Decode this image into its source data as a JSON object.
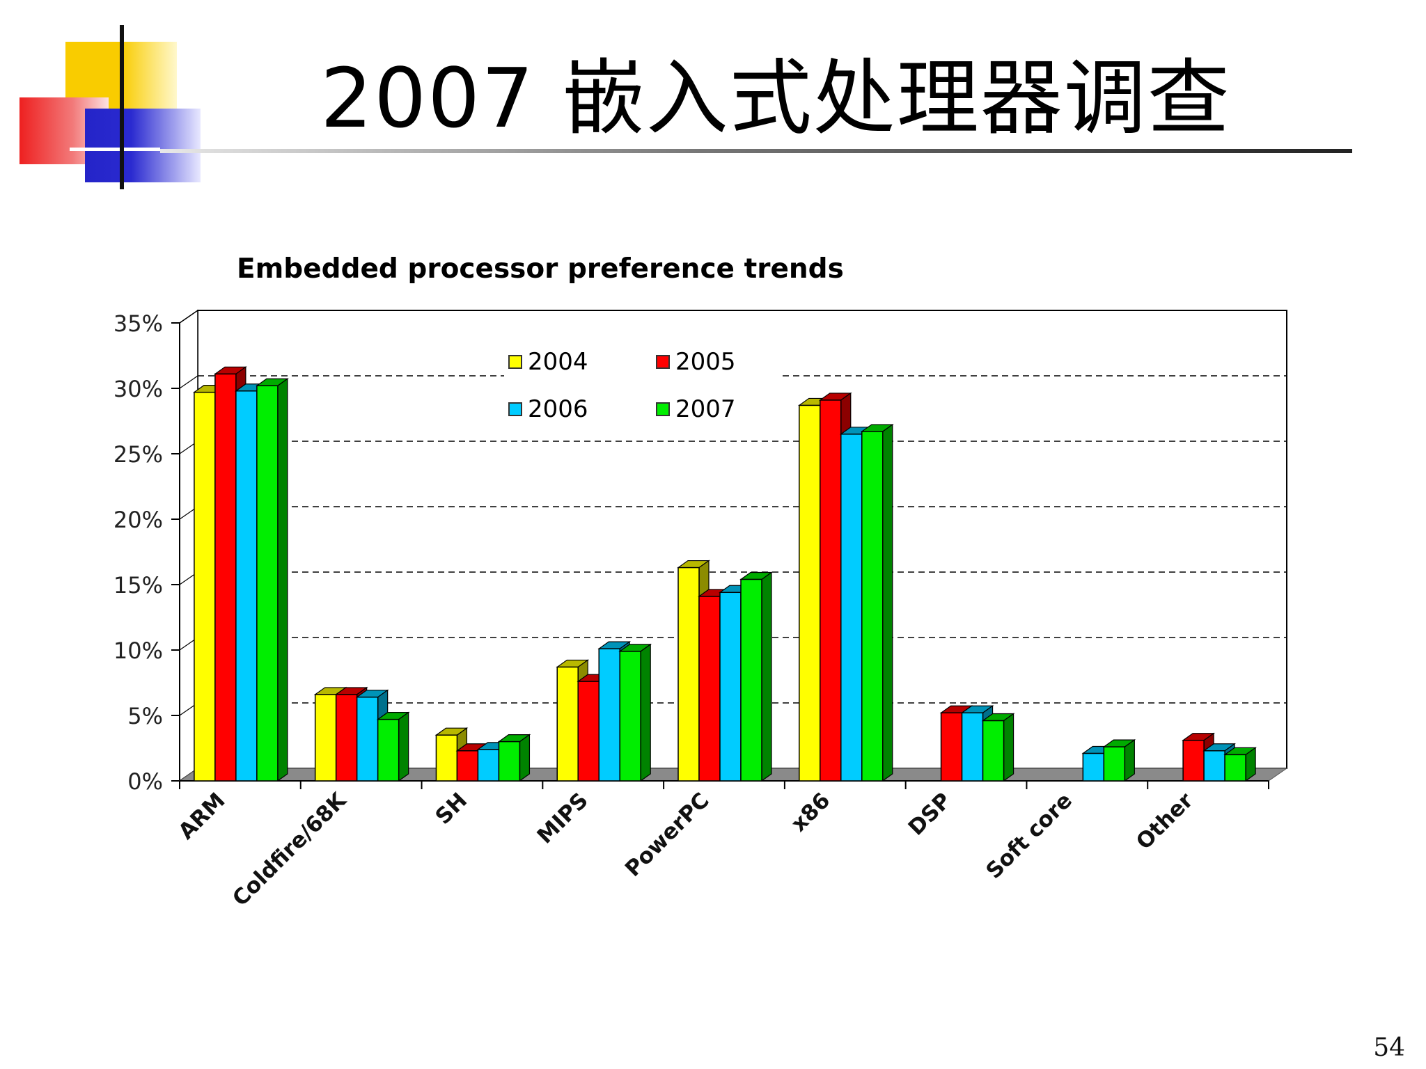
{
  "slide": {
    "title": "2007  嵌入式处理器调查",
    "page_number": "54"
  },
  "chart_data": {
    "type": "bar",
    "title": "Embedded processor preference trends",
    "categories": [
      "ARM",
      "Coldfire/68K",
      "SH",
      "MIPS",
      "PowerPC",
      "x86",
      "DSP",
      "Soft core",
      "Other"
    ],
    "series": [
      {
        "name": "2004",
        "color": "#ffff00",
        "values": [
          29.7,
          6.6,
          3.5,
          8.7,
          16.3,
          28.7,
          0,
          0,
          0
        ]
      },
      {
        "name": "2005",
        "color": "#ff0000",
        "values": [
          31.1,
          6.6,
          2.3,
          7.6,
          14.1,
          29.1,
          5.2,
          0,
          3.1
        ]
      },
      {
        "name": "2006",
        "color": "#00ccff",
        "values": [
          29.8,
          6.4,
          2.4,
          10.1,
          14.4,
          26.5,
          5.2,
          2.1,
          2.3
        ]
      },
      {
        "name": "2007",
        "color": "#00ee00",
        "values": [
          30.2,
          4.7,
          3.0,
          9.9,
          15.4,
          26.7,
          4.6,
          2.6,
          2.0
        ]
      }
    ],
    "ylim": [
      0,
      35
    ],
    "yticks": [
      "0%",
      "5%",
      "10%",
      "15%",
      "20%",
      "25%",
      "30%",
      "35%"
    ],
    "grid": true,
    "legend_position": "top-center",
    "xlabel": "",
    "ylabel": ""
  }
}
